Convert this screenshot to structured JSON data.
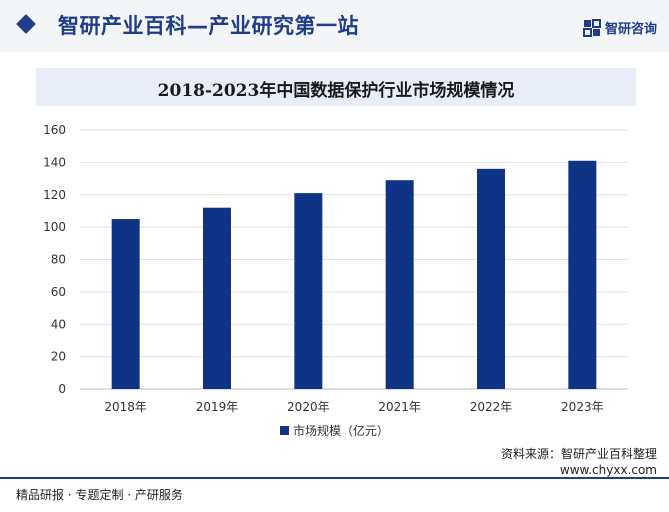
{
  "header": {
    "title": "智研产业百科—产业研究第一站",
    "brand": "智研咨询",
    "accent_color": "#1f3d8a"
  },
  "chart_title": "2018-2023年中国数据保护行业市场规模情况",
  "chart_data": {
    "type": "bar",
    "categories": [
      "2018年",
      "2019年",
      "2020年",
      "2021年",
      "2022年",
      "2023年"
    ],
    "series": [
      {
        "name": "市场规模（亿元）",
        "values": [
          105,
          112,
          121,
          129,
          136,
          141
        ],
        "color": "#0f3485"
      }
    ],
    "title": "2018-2023年中国数据保护行业市场规模情况",
    "xlabel": "",
    "ylabel": "",
    "ylim": [
      0,
      160
    ],
    "yticks": [
      0,
      20,
      40,
      60,
      80,
      100,
      120,
      140,
      160
    ],
    "grid": true,
    "legend_position": "bottom"
  },
  "footer": {
    "source_line1": "资料来源：智研产业百科整理",
    "source_line2": "www.chyxx.com",
    "left_text": "精品研报 · 专题定制 · 产研服务"
  }
}
